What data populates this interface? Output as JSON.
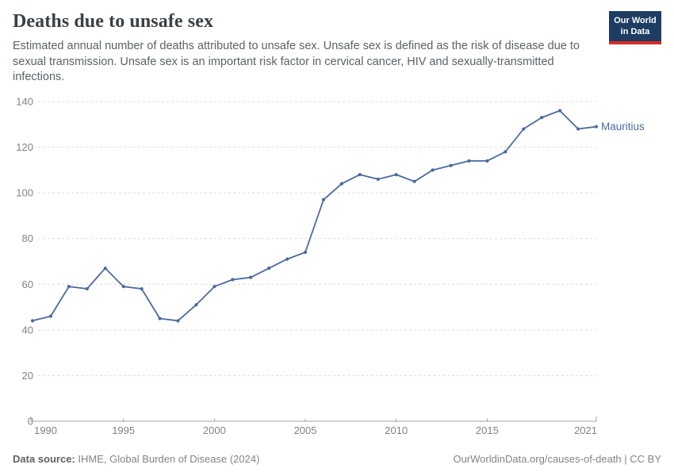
{
  "header": {
    "title": "Deaths due to unsafe sex",
    "subtitle": "Estimated annual number of deaths attributed to unsafe sex. Unsafe sex is defined as the risk of disease due to sexual transmission. Unsafe sex is an important risk factor in cervical cancer, HIV and sexually-transmitted infections.",
    "logo": {
      "line1": "Our World",
      "line2": "in Data",
      "bg_color": "#1d3d63",
      "bar_color": "#d92c27"
    }
  },
  "chart_data": {
    "type": "line",
    "title": "Deaths due to unsafe sex",
    "series": [
      {
        "name": "Mauritius",
        "color": "#4c6a9c",
        "x": [
          1990,
          1991,
          1992,
          1993,
          1994,
          1995,
          1996,
          1997,
          1998,
          1999,
          2000,
          2001,
          2002,
          2003,
          2004,
          2005,
          2006,
          2007,
          2008,
          2009,
          2010,
          2011,
          2012,
          2013,
          2014,
          2015,
          2016,
          2017,
          2018,
          2019,
          2020,
          2021
        ],
        "values": [
          44,
          46,
          59,
          58,
          67,
          59,
          58,
          45,
          44,
          51,
          59,
          62,
          63,
          67,
          71,
          74,
          97,
          104,
          108,
          106,
          108,
          105,
          110,
          112,
          114,
          114,
          118,
          128,
          133,
          136,
          128,
          129
        ]
      }
    ],
    "xlim": [
      1990,
      2021
    ],
    "ylim": [
      0,
      140
    ],
    "x_ticks": [
      1990,
      1995,
      2000,
      2005,
      2010,
      2015,
      2021
    ],
    "y_ticks": [
      0,
      20,
      40,
      60,
      80,
      100,
      120,
      140
    ],
    "grid": true,
    "legend_position": "end-of-line-label",
    "colors": {
      "grid": "#dcdcdc",
      "axis": "#a3a3a3",
      "tick_label": "#828282"
    }
  },
  "footer": {
    "source_label": "Data source:",
    "source_value": " IHME, Global Burden of Disease (2024)",
    "credit": "OurWorldinData.org/causes-of-death | CC BY"
  }
}
